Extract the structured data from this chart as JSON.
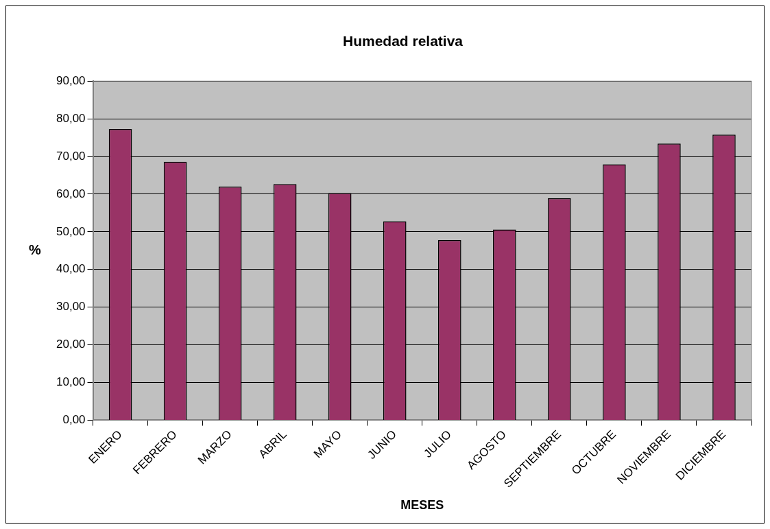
{
  "chart_data": {
    "type": "bar",
    "title": "Humedad relativa",
    "xlabel": "MESES",
    "ylabel": "%",
    "categories": [
      "ENERO",
      "FEBRERO",
      "MARZO",
      "ABRIL",
      "MAYO",
      "JUNIO",
      "JULIO",
      "AGOSTO",
      "SEPTIEMBRE",
      "OCTUBRE",
      "NOVIEMBRE",
      "DICIEMBRE"
    ],
    "values": [
      77.3,
      68.6,
      62.0,
      62.7,
      60.3,
      52.8,
      47.8,
      50.6,
      58.9,
      67.9,
      73.4,
      75.8
    ],
    "color": "#993366",
    "ylim": [
      0,
      90
    ],
    "yticks": [
      {
        "value": 0,
        "label": "0,00"
      },
      {
        "value": 10,
        "label": "10,00"
      },
      {
        "value": 20,
        "label": "20,00"
      },
      {
        "value": 30,
        "label": "30,00"
      },
      {
        "value": 40,
        "label": "40,00"
      },
      {
        "value": 50,
        "label": "50,00"
      },
      {
        "value": 60,
        "label": "60,00"
      },
      {
        "value": 70,
        "label": "70,00"
      },
      {
        "value": 80,
        "label": "80,00"
      },
      {
        "value": 90,
        "label": "90,00"
      }
    ],
    "grid": "y",
    "legend": false
  }
}
